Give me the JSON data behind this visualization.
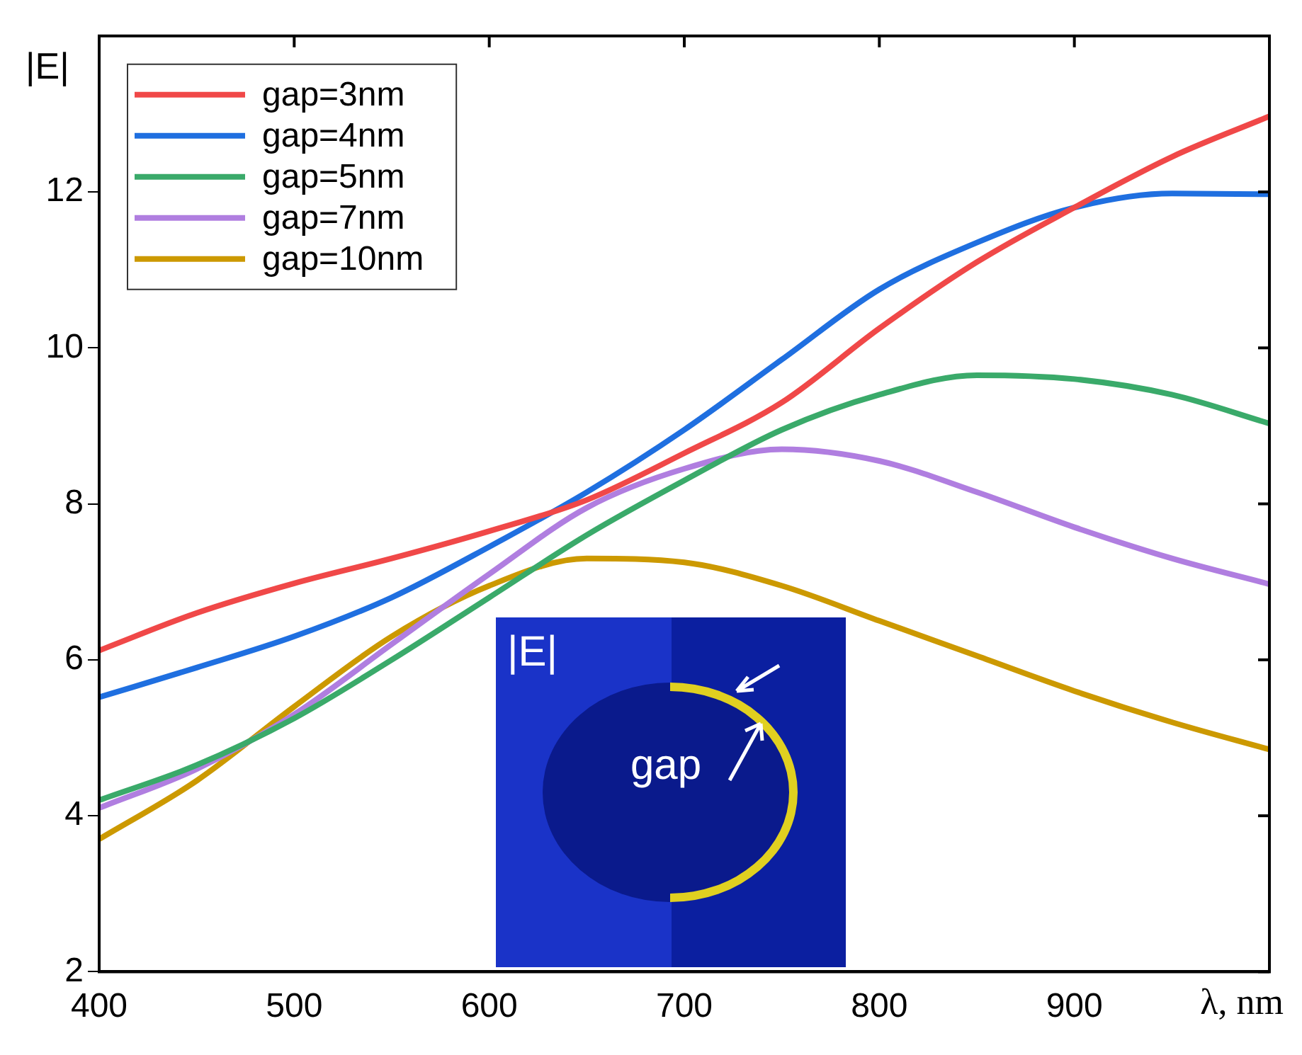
{
  "chart_data": {
    "type": "line",
    "xlabel": "λ, nm",
    "ylabel": "|E|",
    "x": [
      400,
      450,
      500,
      550,
      600,
      650,
      700,
      750,
      800,
      850,
      900,
      950,
      1000
    ],
    "series": [
      {
        "name": "gap=3nm",
        "color": "#f04848",
        "values": [
          6.12,
          6.6,
          6.98,
          7.3,
          7.65,
          8.05,
          8.65,
          9.3,
          10.25,
          11.1,
          11.8,
          12.45,
          12.97
        ]
      },
      {
        "name": "gap=4nm",
        "color": "#1f6fe0",
        "values": [
          5.52,
          5.9,
          6.3,
          6.8,
          7.45,
          8.15,
          8.95,
          9.85,
          10.75,
          11.35,
          11.8,
          11.98,
          11.97
        ]
      },
      {
        "name": "gap=5nm",
        "color": "#3aaa6a",
        "values": [
          4.2,
          4.65,
          5.25,
          6.0,
          6.8,
          7.6,
          8.3,
          8.95,
          9.4,
          9.65,
          9.6,
          9.4,
          9.03
        ]
      },
      {
        "name": "gap=7nm",
        "color": "#b07ee0",
        "values": [
          4.1,
          4.6,
          5.3,
          6.2,
          7.1,
          7.95,
          8.45,
          8.7,
          8.55,
          8.15,
          7.7,
          7.3,
          6.97
        ]
      },
      {
        "name": "gap=10nm",
        "color": "#cc9900",
        "values": [
          3.7,
          4.45,
          5.4,
          6.3,
          6.95,
          7.3,
          7.25,
          6.95,
          6.5,
          6.05,
          5.6,
          5.2,
          4.85
        ]
      }
    ],
    "xlim": [
      400,
      1000
    ],
    "xticks": [
      400,
      500,
      600,
      700,
      800,
      900,
      {
        "value": 1000,
        "label": null
      }
    ],
    "ylim": [
      2,
      14
    ],
    "yticks": [
      2,
      4,
      6,
      8,
      10,
      12
    ],
    "legend": "top left",
    "grid": false,
    "marker": "none",
    "line_style": "solid",
    "annotations": [
      "|E|",
      "gap"
    ]
  }
}
